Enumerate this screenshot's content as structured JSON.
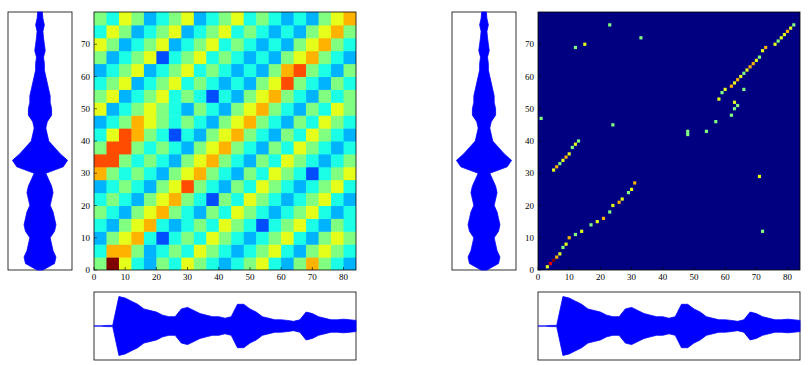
{
  "chart_data": [
    {
      "type": "heatmap",
      "xlim": [
        0,
        84
      ],
      "ylim": [
        0,
        80
      ],
      "xticks": [
        0,
        10,
        20,
        30,
        40,
        50,
        60,
        70,
        80
      ],
      "yticks": [
        0,
        10,
        20,
        30,
        40,
        50,
        60,
        70
      ],
      "zlim": [
        0,
        1
      ],
      "cells": {
        "x_edges": [
          0,
          4,
          8,
          12,
          16,
          20,
          24,
          28,
          32,
          36,
          40,
          44,
          48,
          52,
          56,
          60,
          64,
          68,
          72,
          76,
          80,
          84
        ],
        "y_edges": [
          0,
          4,
          8,
          12,
          16,
          20,
          24,
          28,
          32,
          36,
          40,
          44,
          48,
          52,
          56,
          60,
          64,
          68,
          72,
          76,
          80
        ],
        "z": [
          [
            0.5,
            1.0,
            0.6,
            0.4,
            0.3,
            0.5,
            0.4,
            0.6,
            0.5,
            0.4,
            0.3,
            0.4,
            0.5,
            0.6,
            0.4,
            0.3,
            0.5,
            0.7,
            0.5,
            0.4,
            0.3
          ],
          [
            0.4,
            0.7,
            0.7,
            0.5,
            0.3,
            0.4,
            0.5,
            0.4,
            0.6,
            0.5,
            0.4,
            0.3,
            0.4,
            0.5,
            0.6,
            0.4,
            0.3,
            0.5,
            0.6,
            0.5,
            0.4
          ],
          [
            0.3,
            0.5,
            0.6,
            0.7,
            0.4,
            0.2,
            0.4,
            0.5,
            0.4,
            0.6,
            0.5,
            0.4,
            0.3,
            0.4,
            0.5,
            0.6,
            0.4,
            0.3,
            0.5,
            0.6,
            0.5
          ],
          [
            0.4,
            0.3,
            0.5,
            0.6,
            0.7,
            0.4,
            0.3,
            0.4,
            0.5,
            0.4,
            0.6,
            0.5,
            0.4,
            0.2,
            0.4,
            0.5,
            0.6,
            0.4,
            0.3,
            0.5,
            0.4
          ],
          [
            0.5,
            0.4,
            0.3,
            0.5,
            0.6,
            0.7,
            0.5,
            0.4,
            0.3,
            0.5,
            0.4,
            0.6,
            0.5,
            0.4,
            0.3,
            0.4,
            0.5,
            0.6,
            0.4,
            0.3,
            0.4
          ],
          [
            0.4,
            0.5,
            0.4,
            0.3,
            0.5,
            0.6,
            0.7,
            0.5,
            0.4,
            0.2,
            0.5,
            0.4,
            0.6,
            0.5,
            0.4,
            0.3,
            0.4,
            0.5,
            0.6,
            0.4,
            0.3
          ],
          [
            0.3,
            0.4,
            0.5,
            0.4,
            0.3,
            0.5,
            0.6,
            0.8,
            0.5,
            0.4,
            0.3,
            0.5,
            0.4,
            0.6,
            0.5,
            0.4,
            0.3,
            0.4,
            0.5,
            0.6,
            0.4
          ],
          [
            0.7,
            0.5,
            0.4,
            0.5,
            0.4,
            0.3,
            0.5,
            0.6,
            0.7,
            0.5,
            0.4,
            0.3,
            0.5,
            0.4,
            0.6,
            0.5,
            0.4,
            0.2,
            0.4,
            0.5,
            0.6
          ],
          [
            0.8,
            0.8,
            0.5,
            0.4,
            0.5,
            0.4,
            0.3,
            0.5,
            0.6,
            0.7,
            0.5,
            0.4,
            0.3,
            0.5,
            0.4,
            0.6,
            0.5,
            0.4,
            0.3,
            0.4,
            0.5
          ],
          [
            0.5,
            0.8,
            0.8,
            0.5,
            0.4,
            0.5,
            0.4,
            0.3,
            0.5,
            0.6,
            0.7,
            0.5,
            0.4,
            0.3,
            0.5,
            0.4,
            0.6,
            0.5,
            0.4,
            0.3,
            0.4
          ],
          [
            0.4,
            0.6,
            0.8,
            0.7,
            0.5,
            0.4,
            0.2,
            0.4,
            0.3,
            0.5,
            0.6,
            0.7,
            0.5,
            0.4,
            0.3,
            0.5,
            0.4,
            0.6,
            0.5,
            0.4,
            0.3
          ],
          [
            0.3,
            0.4,
            0.5,
            0.7,
            0.6,
            0.5,
            0.4,
            0.5,
            0.4,
            0.3,
            0.5,
            0.6,
            0.7,
            0.5,
            0.4,
            0.3,
            0.5,
            0.4,
            0.6,
            0.5,
            0.4
          ],
          [
            0.6,
            0.3,
            0.4,
            0.5,
            0.6,
            0.5,
            0.4,
            0.3,
            0.5,
            0.4,
            0.3,
            0.5,
            0.6,
            0.7,
            0.5,
            0.4,
            0.3,
            0.5,
            0.4,
            0.6,
            0.5
          ],
          [
            0.5,
            0.6,
            0.3,
            0.4,
            0.5,
            0.6,
            0.4,
            0.5,
            0.4,
            0.2,
            0.4,
            0.3,
            0.5,
            0.6,
            0.7,
            0.5,
            0.4,
            0.3,
            0.5,
            0.4,
            0.5
          ],
          [
            0.4,
            0.5,
            0.6,
            0.3,
            0.4,
            0.5,
            0.6,
            0.4,
            0.5,
            0.4,
            0.3,
            0.4,
            0.3,
            0.5,
            0.6,
            0.8,
            0.5,
            0.4,
            0.3,
            0.5,
            0.4
          ],
          [
            0.3,
            0.4,
            0.5,
            0.6,
            0.3,
            0.4,
            0.5,
            0.6,
            0.4,
            0.5,
            0.4,
            0.3,
            0.4,
            0.3,
            0.5,
            0.7,
            0.8,
            0.5,
            0.4,
            0.3,
            0.5
          ],
          [
            0.5,
            0.3,
            0.4,
            0.5,
            0.6,
            0.2,
            0.4,
            0.5,
            0.6,
            0.4,
            0.5,
            0.4,
            0.3,
            0.4,
            0.3,
            0.5,
            0.6,
            0.7,
            0.5,
            0.4,
            0.3
          ],
          [
            0.6,
            0.5,
            0.3,
            0.4,
            0.5,
            0.6,
            0.3,
            0.4,
            0.5,
            0.6,
            0.4,
            0.5,
            0.4,
            0.3,
            0.4,
            0.3,
            0.5,
            0.6,
            0.7,
            0.5,
            0.4
          ],
          [
            0.4,
            0.6,
            0.5,
            0.3,
            0.4,
            0.5,
            0.6,
            0.3,
            0.4,
            0.5,
            0.6,
            0.4,
            0.5,
            0.4,
            0.3,
            0.4,
            0.3,
            0.5,
            0.6,
            0.7,
            0.5
          ],
          [
            0.5,
            0.4,
            0.6,
            0.5,
            0.3,
            0.4,
            0.5,
            0.6,
            0.3,
            0.4,
            0.5,
            0.6,
            0.4,
            0.5,
            0.4,
            0.3,
            0.4,
            0.3,
            0.5,
            0.6,
            0.7
          ]
        ]
      },
      "waveform_left": {
        "t": [
          0,
          2,
          4,
          6,
          8,
          10,
          12,
          14,
          16,
          18,
          20,
          22,
          24,
          26,
          28,
          30,
          32,
          34,
          36,
          38,
          40,
          42,
          44,
          46,
          48,
          50,
          52,
          54,
          56,
          58,
          60,
          62,
          64,
          66,
          68,
          70,
          72,
          74,
          76,
          78,
          80
        ],
        "amplitude": [
          0.1,
          0.5,
          0.55,
          0.45,
          0.4,
          0.35,
          0.5,
          0.55,
          0.5,
          0.45,
          0.35,
          0.4,
          0.45,
          0.4,
          0.3,
          0.2,
          0.8,
          0.95,
          0.7,
          0.5,
          0.3,
          0.25,
          0.2,
          0.25,
          0.4,
          0.4,
          0.35,
          0.35,
          0.3,
          0.25,
          0.2,
          0.15,
          0.15,
          0.12,
          0.18,
          0.15,
          0.12,
          0.1,
          0.15,
          0.1,
          0.08
        ]
      },
      "waveform_bottom": {
        "t": [
          0,
          2,
          4,
          6,
          8,
          10,
          12,
          14,
          16,
          18,
          20,
          22,
          24,
          26,
          28,
          30,
          32,
          34,
          36,
          38,
          40,
          42,
          44,
          46,
          48,
          50,
          52,
          54,
          56,
          58,
          60,
          62,
          64,
          66,
          68,
          70,
          72,
          74,
          76,
          78,
          80,
          82,
          84
        ],
        "amplitude": [
          0,
          0,
          0.02,
          0.02,
          0.95,
          0.9,
          0.8,
          0.7,
          0.55,
          0.5,
          0.45,
          0.35,
          0.3,
          0.3,
          0.55,
          0.6,
          0.5,
          0.4,
          0.35,
          0.3,
          0.3,
          0.25,
          0.3,
          0.7,
          0.7,
          0.55,
          0.45,
          0.3,
          0.25,
          0.2,
          0.2,
          0.18,
          0.15,
          0.2,
          0.45,
          0.4,
          0.3,
          0.25,
          0.2,
          0.2,
          0.22,
          0.2,
          0.18
        ]
      }
    },
    {
      "type": "heatmap",
      "xlim": [
        0,
        84
      ],
      "ylim": [
        0,
        80
      ],
      "xticks": [
        0,
        10,
        20,
        30,
        40,
        50,
        60,
        70,
        80
      ],
      "yticks": [
        0,
        10,
        20,
        30,
        40,
        50,
        60,
        70
      ],
      "zlim": [
        0,
        1
      ],
      "background": 0,
      "points": {
        "x": [
          3,
          4,
          5,
          6,
          7,
          8,
          9,
          10,
          12,
          14,
          17,
          19,
          21,
          23,
          24,
          26,
          27,
          29,
          30,
          31,
          5,
          6,
          7,
          8,
          9,
          10,
          11,
          12,
          13,
          1,
          12,
          15,
          23,
          33,
          24,
          48,
          48,
          54,
          57,
          71,
          72,
          58,
          59,
          60,
          62,
          63,
          64,
          65,
          66,
          67,
          68,
          69,
          70,
          71,
          72,
          73,
          76,
          77,
          78,
          79,
          80,
          81,
          82,
          62,
          63,
          63,
          64,
          66
        ],
        "y": [
          1,
          2,
          3,
          4,
          5,
          7,
          8,
          10,
          11,
          12,
          14,
          15,
          16,
          18,
          20,
          21,
          22,
          24,
          25,
          27,
          31,
          32,
          33,
          34,
          35,
          36,
          38,
          39,
          40,
          47,
          69,
          70,
          76,
          72,
          45,
          42,
          43,
          43,
          46,
          29,
          12,
          53,
          55,
          56,
          57,
          58,
          59,
          60,
          61,
          62,
          63,
          64,
          65,
          66,
          68,
          69,
          70,
          71,
          72,
          73,
          74,
          75,
          76,
          48,
          50,
          52,
          51,
          56
        ],
        "z": [
          0.6,
          0.9,
          1.0,
          0.7,
          0.6,
          0.5,
          0.6,
          0.7,
          0.5,
          0.6,
          0.5,
          0.6,
          0.7,
          0.5,
          0.6,
          0.7,
          0.6,
          0.5,
          0.6,
          0.7,
          0.6,
          0.7,
          0.5,
          0.6,
          0.7,
          0.6,
          0.5,
          0.6,
          0.5,
          0.5,
          0.5,
          0.6,
          0.5,
          0.5,
          0.5,
          0.5,
          0.5,
          0.5,
          0.5,
          0.6,
          0.5,
          0.6,
          0.5,
          0.6,
          0.7,
          0.6,
          0.7,
          0.6,
          0.5,
          0.6,
          0.7,
          0.7,
          0.6,
          0.5,
          0.6,
          0.7,
          0.6,
          0.5,
          0.6,
          0.6,
          0.7,
          0.6,
          0.5,
          0.5,
          0.5,
          0.6,
          0.5,
          0.5
        ]
      },
      "waveform_left": {
        "t": [
          0,
          2,
          4,
          6,
          8,
          10,
          12,
          14,
          16,
          18,
          20,
          22,
          24,
          26,
          28,
          30,
          32,
          34,
          36,
          38,
          40,
          42,
          44,
          46,
          48,
          50,
          52,
          54,
          56,
          58,
          60,
          62,
          64,
          66,
          68,
          70,
          72,
          74,
          76,
          78,
          80
        ],
        "amplitude": [
          0.1,
          0.5,
          0.55,
          0.45,
          0.4,
          0.35,
          0.5,
          0.55,
          0.5,
          0.45,
          0.35,
          0.4,
          0.45,
          0.4,
          0.3,
          0.2,
          0.8,
          0.95,
          0.7,
          0.5,
          0.3,
          0.25,
          0.2,
          0.25,
          0.4,
          0.4,
          0.35,
          0.35,
          0.3,
          0.25,
          0.2,
          0.15,
          0.15,
          0.12,
          0.18,
          0.15,
          0.12,
          0.1,
          0.15,
          0.1,
          0.08
        ]
      },
      "waveform_bottom": {
        "t": [
          0,
          2,
          4,
          6,
          8,
          10,
          12,
          14,
          16,
          18,
          20,
          22,
          24,
          26,
          28,
          30,
          32,
          34,
          36,
          38,
          40,
          42,
          44,
          46,
          48,
          50,
          52,
          54,
          56,
          58,
          60,
          62,
          64,
          66,
          68,
          70,
          72,
          74,
          76,
          78,
          80,
          82,
          84
        ],
        "amplitude": [
          0,
          0,
          0.02,
          0.02,
          0.95,
          0.9,
          0.8,
          0.7,
          0.55,
          0.5,
          0.45,
          0.35,
          0.3,
          0.3,
          0.55,
          0.6,
          0.5,
          0.4,
          0.35,
          0.3,
          0.3,
          0.25,
          0.3,
          0.7,
          0.7,
          0.55,
          0.45,
          0.3,
          0.25,
          0.2,
          0.2,
          0.18,
          0.15,
          0.2,
          0.45,
          0.4,
          0.3,
          0.25,
          0.2,
          0.2,
          0.22,
          0.2,
          0.18
        ]
      }
    }
  ]
}
